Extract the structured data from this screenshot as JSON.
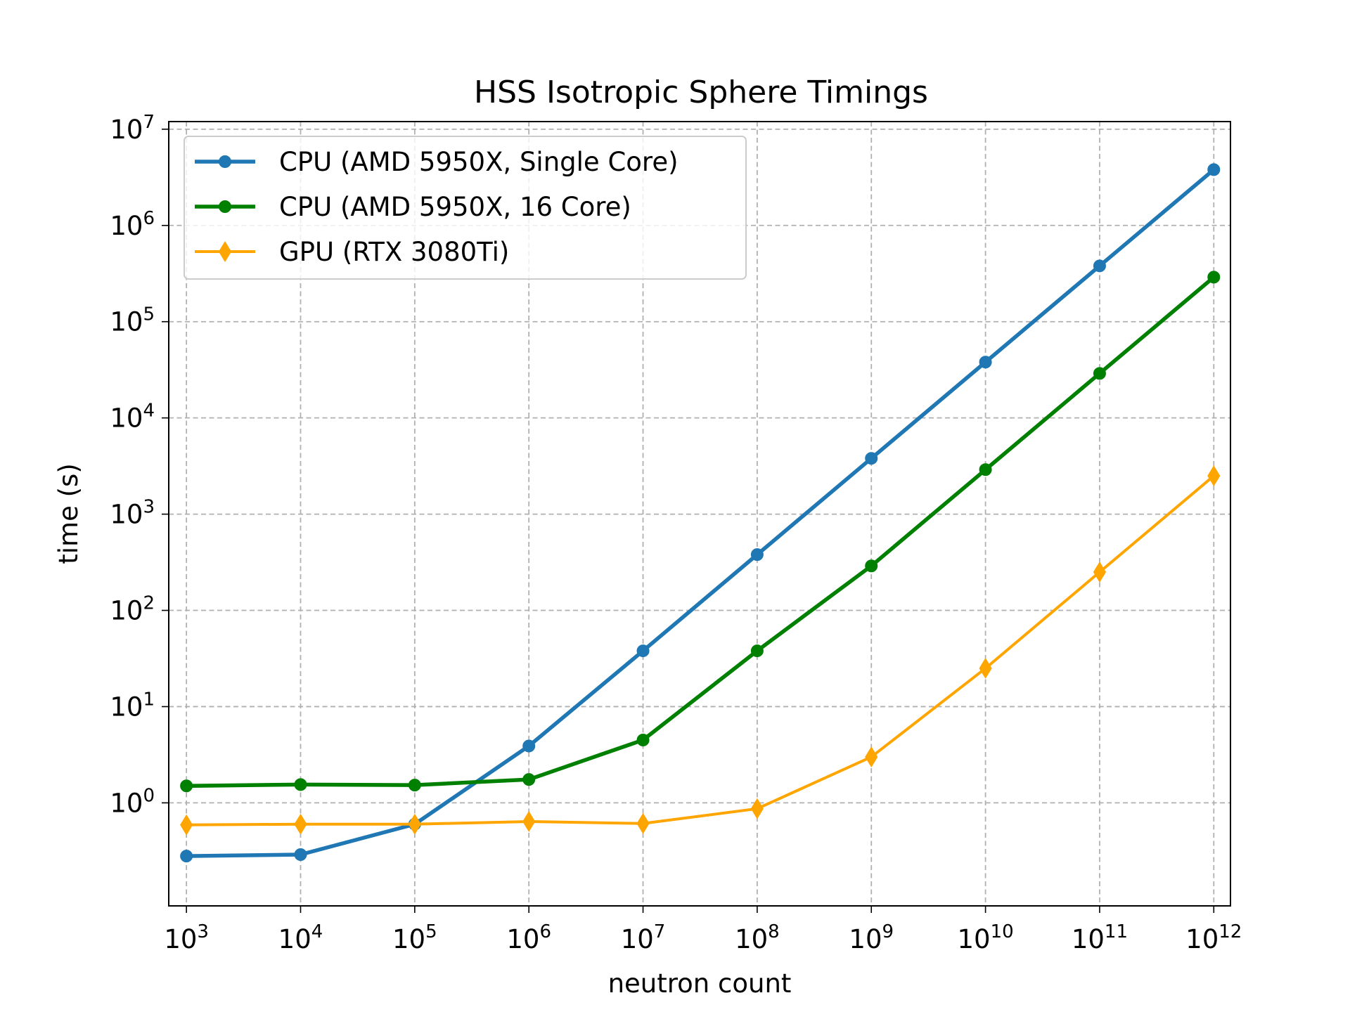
{
  "chart_data": {
    "type": "line",
    "title": "HSS Isotropic Sphere Timings",
    "xlabel": "neutron count",
    "ylabel": "time (s)",
    "x_scale": "log",
    "y_scale": "log",
    "x": [
      1000,
      10000,
      100000,
      1000000,
      10000000,
      100000000,
      1000000000,
      10000000000,
      100000000000,
      1000000000000
    ],
    "xlim": [
      700,
      1400000000000
    ],
    "ylim": [
      0.085,
      12000000
    ],
    "x_ticks": [
      {
        "base": "10",
        "exp": "3"
      },
      {
        "base": "10",
        "exp": "4"
      },
      {
        "base": "10",
        "exp": "5"
      },
      {
        "base": "10",
        "exp": "6"
      },
      {
        "base": "10",
        "exp": "7"
      },
      {
        "base": "10",
        "exp": "8"
      },
      {
        "base": "10",
        "exp": "9"
      },
      {
        "base": "10",
        "exp": "10"
      },
      {
        "base": "10",
        "exp": "11"
      },
      {
        "base": "10",
        "exp": "12"
      }
    ],
    "y_ticks": [
      {
        "base": "10",
        "exp": "0"
      },
      {
        "base": "10",
        "exp": "1"
      },
      {
        "base": "10",
        "exp": "2"
      },
      {
        "base": "10",
        "exp": "3"
      },
      {
        "base": "10",
        "exp": "4"
      },
      {
        "base": "10",
        "exp": "5"
      },
      {
        "base": "10",
        "exp": "6"
      },
      {
        "base": "10",
        "exp": "7"
      }
    ],
    "grid": true,
    "legend_position": "top-left",
    "series": [
      {
        "name": "CPU (AMD 5950X, Single Core)",
        "color": "#1f77b4",
        "marker": "circle",
        "values": [
          0.28,
          0.29,
          0.6,
          3.9,
          38,
          380,
          3800,
          38000,
          380000,
          3800000
        ]
      },
      {
        "name": "CPU (AMD 5950X, 16 Core)",
        "color": "#008000",
        "marker": "circle",
        "values": [
          1.5,
          1.55,
          1.53,
          1.75,
          4.5,
          38,
          290,
          2900,
          29000,
          290000
        ]
      },
      {
        "name": "GPU (RTX 3080Ti)",
        "color": "#ffa500",
        "marker": "diamond",
        "values": [
          0.59,
          0.6,
          0.6,
          0.64,
          0.61,
          0.87,
          3.0,
          25,
          250,
          2500
        ]
      }
    ]
  }
}
